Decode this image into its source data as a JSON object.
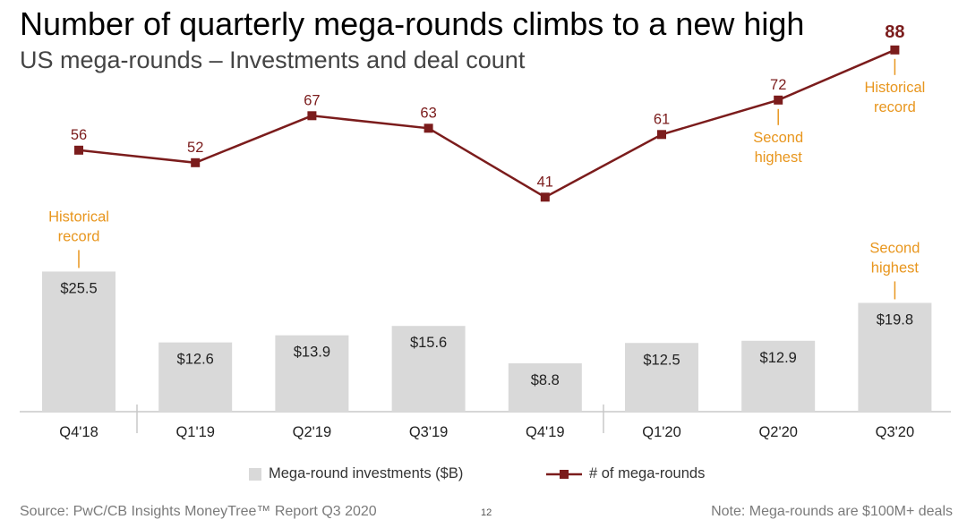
{
  "title": "Number of quarterly mega-rounds climbs to a new high",
  "subtitle": "US mega-rounds – Investments and deal count",
  "chart_data": {
    "type": "bar",
    "categories": [
      "Q4'18",
      "Q1'19",
      "Q2'19",
      "Q3'19",
      "Q4'19",
      "Q1'20",
      "Q2'20",
      "Q3'20"
    ],
    "series": [
      {
        "name": "Mega-round investments ($B)",
        "type": "bar",
        "values": [
          25.5,
          12.6,
          13.9,
          15.6,
          8.8,
          12.5,
          12.9,
          19.8
        ],
        "labels": [
          "$25.5",
          "$12.6",
          "$13.9",
          "$15.6",
          "$8.8",
          "$12.5",
          "$12.9",
          "$19.8"
        ],
        "color": "#d9d9d9"
      },
      {
        "name": "# of mega-rounds",
        "type": "line",
        "values": [
          56,
          52,
          67,
          63,
          41,
          61,
          72,
          88
        ],
        "labels": [
          "56",
          "52",
          "67",
          "63",
          "41",
          "61",
          "72",
          "88"
        ],
        "color": "#7b1c1c"
      }
    ],
    "annotations": [
      {
        "category": "Q4'18",
        "series": "Mega-round investments ($B)",
        "text": [
          "Historical",
          "record"
        ]
      },
      {
        "category": "Q3'20",
        "series": "Mega-round investments ($B)",
        "text": [
          "Second",
          "highest"
        ]
      },
      {
        "category": "Q2'20",
        "series": "# of mega-rounds",
        "text": [
          "Second",
          "highest"
        ]
      },
      {
        "category": "Q3'20",
        "series": "# of mega-rounds",
        "text": [
          "Historical",
          "record"
        ]
      }
    ],
    "annotation_color": "#e8961e",
    "highlight_label": "88",
    "grid": false,
    "legend_position": "bottom"
  },
  "legend": {
    "bar_label": "Mega-round investments ($B)",
    "line_label": "# of mega-rounds"
  },
  "footer": {
    "source": "Source: PwC/CB Insights MoneyTree™ Report Q3 2020",
    "page": "12",
    "note": "Note: Mega-rounds are $100M+ deals"
  }
}
